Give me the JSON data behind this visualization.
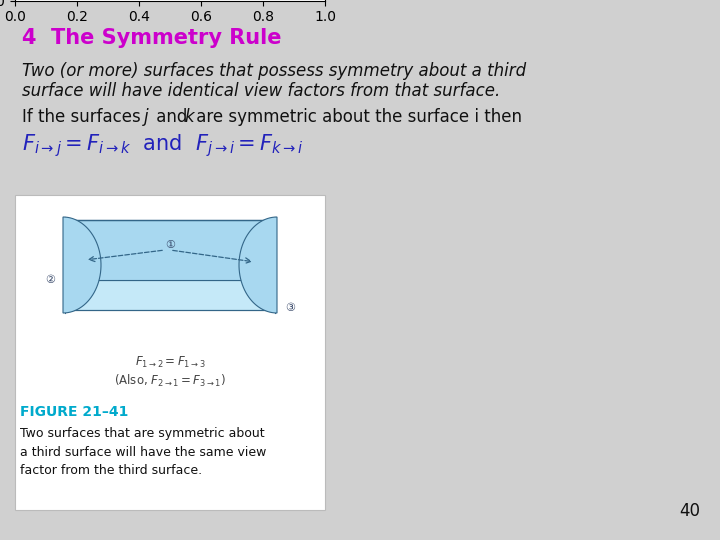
{
  "bg_color": "#d0d0d0",
  "title": "4  The Symmetry Rule",
  "title_color": "#cc00cc",
  "title_fontsize": 15,
  "body_italic_text_line1": "Two (or more) surfaces that possess symmetry about a third",
  "body_italic_text_line2": "surface will have identical view factors from that surface.",
  "body_regular_line": "If the surfaces ",
  "body_j": "j",
  "body_and": " and ",
  "body_k": "k",
  "body_rest": " are symmetric about the surface i then",
  "formula_line": "$F_{i\\rightarrow j} = F_{i\\rightarrow k}$  and  $F_{j\\rightarrow i} = F_{k\\rightarrow i}$",
  "formula_color": "#2222bb",
  "formula_fontsize": 15,
  "figure_caption_bold": "FIGURE 21–41",
  "figure_caption_bold_color": "#00aacc",
  "figure_caption_text": "Two surfaces that are symmetric about\na third surface will have the same view\nfactor from the third surface.",
  "page_number": "40",
  "body_text_color": "#111111",
  "body_fontsize": 12,
  "light_blue": "#a8d8f0",
  "lighter_blue": "#c5e9f8",
  "edge_color": "#336688",
  "diagram_eq1": "$F_{1\\rightarrow 2} = F_{1\\rightarrow 3}$",
  "diagram_eq2": "(Also, $F_{2\\rightarrow 1} = F_{3\\rightarrow 1}$)"
}
